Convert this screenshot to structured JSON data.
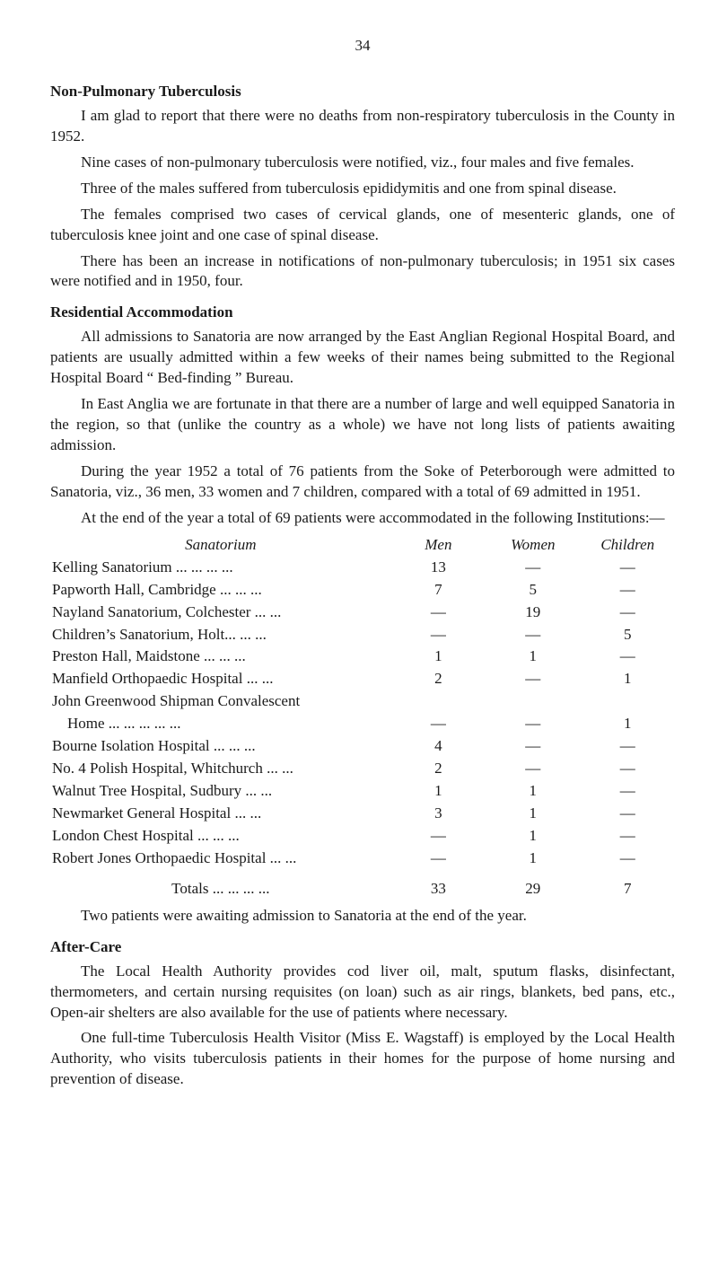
{
  "page_number": "34",
  "s1": {
    "heading": "Non-Pulmonary Tuberculosis",
    "p1": "I am glad to report that there were no deaths from non-respiratory tuberculosis in the County in 1952.",
    "p2": "Nine cases of non-pulmonary tuberculosis were notified, viz., four males and five females.",
    "p3": "Three of the males suffered from tuberculosis epididymitis and one from spinal disease.",
    "p4": "The females comprised two cases of cervical glands, one of mesenteric glands, one of tuberculosis knee joint and one case of spinal disease.",
    "p5": "There has been an increase in notifications of non-pulmonary tuberculosis; in 1951 six cases were notified and in 1950, four."
  },
  "s2": {
    "heading": "Residential Accommodation",
    "p1": "All admissions to Sanatoria are now arranged by the East Anglian Regional Hospital Board, and patients are usually admitted within a few weeks of their names being submitted to the Regional Hospital Board “ Bed-finding ” Bureau.",
    "p2": "In East Anglia we are fortunate in that there are a number of large and well equipped Sanatoria in the region, so that (unlike the country as a whole) we have not long lists of patients awaiting admission.",
    "p3": "During the year 1952 a total of 76 patients from the Soke of Peterborough were admitted to Sanatoria, viz., 36 men, 33 women and 7 children, compared with a total of 69 admitted in 1951.",
    "p4": "At the end of the year a total of 69 patients were accommodated in the following Institutions:—"
  },
  "table": {
    "col_sanatorium": "Sanatorium",
    "col_men": "Men",
    "col_women": "Women",
    "col_children": "Children",
    "rows": [
      {
        "name": "Kelling Sanatorium   ...      ...      ...      ...",
        "men": "13",
        "women": "—",
        "children": "—"
      },
      {
        "name": "Papworth Hall, Cambridge ...      ...      ...",
        "men": "7",
        "women": "5",
        "children": "—"
      },
      {
        "name": "Nayland Sanatorium, Colchester   ...      ...",
        "men": "—",
        "women": "19",
        "children": "—"
      },
      {
        "name": "Children’s Sanatorium, Holt...      ...      ...",
        "men": "—",
        "women": "—",
        "children": "5"
      },
      {
        "name": "Preston Hall, Maidstone       ...      ...      ...",
        "men": "1",
        "women": "1",
        "children": "—"
      },
      {
        "name": "Manfield Orthopaedic Hospital      ...      ...",
        "men": "2",
        "women": "—",
        "children": "1"
      },
      {
        "name": "John   Greenwood   Shipman   Convalescent",
        "men": "",
        "women": "",
        "children": ""
      },
      {
        "name": "    Home       ...      ...      ...      ...      ...",
        "men": "—",
        "women": "—",
        "children": "1"
      },
      {
        "name": "Bourne Isolation Hospital    ...      ...      ...",
        "men": "4",
        "women": "—",
        "children": "—"
      },
      {
        "name": "No. 4 Polish Hospital, Whitchurch ...      ...",
        "men": "2",
        "women": "—",
        "children": "—"
      },
      {
        "name": "Walnut Tree Hospital, Sudbury      ...      ...",
        "men": "1",
        "women": "1",
        "children": "—"
      },
      {
        "name": "Newmarket General Hospital        ...      ...",
        "men": "3",
        "women": "1",
        "children": "—"
      },
      {
        "name": "London Chest Hospital         ...      ...      ...",
        "men": "—",
        "women": "1",
        "children": "—"
      },
      {
        "name": "Robert Jones Orthopaedic Hospital ...      ...",
        "men": "—",
        "women": "1",
        "children": "—"
      }
    ],
    "totals_label": "Totals   ...      ...      ...      ...",
    "totals_men": "33",
    "totals_women": "29",
    "totals_children": "7"
  },
  "s2_p5": "Two patients were awaiting admission to Sanatoria at the end of the year.",
  "s3": {
    "heading": "After-Care",
    "p1": "The Local Health Authority provides cod liver oil, malt, sputum flasks, disinfectant, thermometers, and certain nursing requisites (on loan) such as air rings, blankets, bed pans, etc., Open-air shelters are also available for the use of patients where necessary.",
    "p2": "One full-time Tuberculosis Health Visitor (Miss E. Wagstaff) is employed by the Local Health Authority, who visits tuberculosis patients in their homes for the purpose of home nursing and prevention of disease."
  }
}
